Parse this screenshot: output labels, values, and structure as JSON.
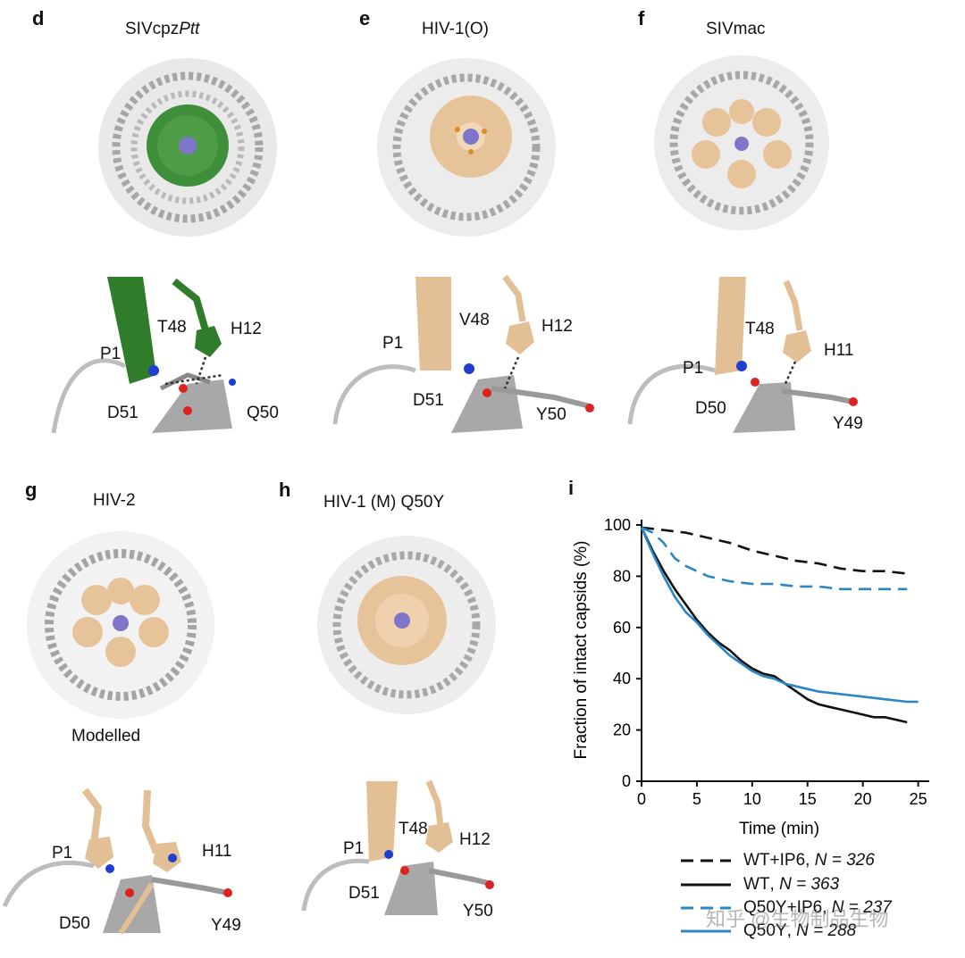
{
  "panels": {
    "d": {
      "letter": "d",
      "title_main": "SIVcpz",
      "title_italic": "Ptt",
      "labels": {
        "T48": "T48",
        "H12": "H12",
        "P1": "P1",
        "D51": "D51",
        "Q50": "Q50"
      }
    },
    "e": {
      "letter": "e",
      "title": "HIV-1(O)",
      "labels": {
        "P1": "P1",
        "V48": "V48",
        "H12": "H12",
        "D51": "D51",
        "Y50": "Y50"
      }
    },
    "f": {
      "letter": "f",
      "title": "SIVmac",
      "labels": {
        "T48": "T48",
        "H11": "H11",
        "P1": "P1",
        "D50": "D50",
        "Y49": "Y49"
      }
    },
    "g": {
      "letter": "g",
      "title": "HIV-2",
      "caption": "Modelled",
      "labels": {
        "P1": "P1",
        "H11": "H11",
        "D50": "D50",
        "Y49": "Y49"
      }
    },
    "h": {
      "letter": "h",
      "title": "HIV-1 (M) Q50Y",
      "labels": {
        "T48": "T48",
        "P1": "P1",
        "H12": "H12",
        "D51": "D51",
        "Y50": "Y50"
      }
    },
    "i": {
      "letter": "i"
    }
  },
  "colors": {
    "green": "#3f8f3a",
    "tan": "#e7c39a",
    "gray": "#8a8a8a",
    "black": "#111111",
    "blue": "#2a86c4"
  },
  "chart_data": {
    "type": "line",
    "xlabel": "Time (min)",
    "ylabel": "Fraction of intact capsids (%)",
    "xlim": [
      0,
      26
    ],
    "ylim": [
      0,
      100
    ],
    "xticks": [
      0,
      5,
      10,
      15,
      20,
      25
    ],
    "yticks": [
      0,
      20,
      40,
      60,
      80,
      100
    ],
    "series": [
      {
        "name": "WT+IP6",
        "n_label": "N = 326",
        "color": "#111111",
        "dash": true,
        "x": [
          0,
          2,
          4,
          6,
          8,
          10,
          12,
          14,
          16,
          18,
          20,
          22,
          24
        ],
        "y": [
          99,
          98,
          97,
          95,
          93,
          90,
          88,
          86,
          85,
          83,
          82,
          82,
          81
        ]
      },
      {
        "name": "WT",
        "n_label": "N = 363",
        "color": "#111111",
        "dash": false,
        "x": [
          0,
          1,
          2,
          3,
          4,
          5,
          6,
          7,
          8,
          9,
          10,
          11,
          12,
          13,
          14,
          15,
          16,
          17,
          18,
          19,
          20,
          21,
          22,
          23,
          24
        ],
        "y": [
          99,
          90,
          82,
          75,
          69,
          63,
          58,
          54,
          51,
          47,
          44,
          42,
          41,
          38,
          35,
          32,
          30,
          29,
          28,
          27,
          26,
          25,
          25,
          24,
          23
        ]
      },
      {
        "name": "Q50Y+IP6",
        "n_label": "N = 237",
        "color": "#2a86c4",
        "dash": true,
        "x": [
          0,
          1,
          2,
          3,
          4,
          5,
          6,
          8,
          10,
          12,
          14,
          16,
          18,
          20,
          22,
          24
        ],
        "y": [
          99,
          97,
          93,
          87,
          84,
          82,
          80,
          78,
          77,
          77,
          76,
          76,
          75,
          75,
          75,
          75
        ]
      },
      {
        "name": "Q50Y",
        "n_label": "N = 288",
        "color": "#2a86c4",
        "dash": false,
        "x": [
          0,
          1,
          2,
          3,
          4,
          5,
          6,
          7,
          8,
          9,
          10,
          11,
          12,
          13,
          14,
          15,
          16,
          18,
          20,
          22,
          24,
          25
        ],
        "y": [
          99,
          89,
          80,
          72,
          66,
          62,
          57,
          53,
          49,
          46,
          43,
          41,
          40,
          38,
          37,
          36,
          35,
          34,
          33,
          32,
          31,
          31
        ]
      }
    ]
  },
  "watermark": "知乎 @生物制品生物"
}
